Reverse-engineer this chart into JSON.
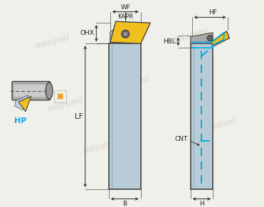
{
  "bg_color": "#f0f0eb",
  "tool_body_color": "#b8ccd8",
  "tool_body_edge": "#444444",
  "insert_yellow": "#f0c020",
  "insert_edge": "#444444",
  "clamp_color": "#888888",
  "blue_dashed": "#00aadd",
  "dimension_color": "#222222",
  "hp_color": "#00aaee",
  "arrow_color": "#f0a020",
  "labels": {
    "WF": "WF",
    "KAPR": "KAPR",
    "OHX": "OHX",
    "LF": "LF",
    "B": "B",
    "HF": "HF",
    "HBL": "HBL",
    "CNT": "CNT",
    "H": "H",
    "HP": "HP"
  }
}
